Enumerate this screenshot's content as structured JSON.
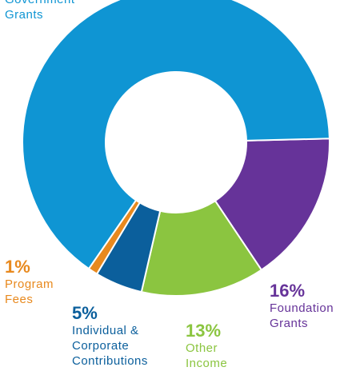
{
  "chart_data": {
    "type": "pie",
    "title": "",
    "donut": true,
    "legend": "none",
    "slices": [
      {
        "key": "gov",
        "label": [
          "Government",
          "Grants"
        ],
        "pct_label": "",
        "value": 65,
        "color": "#0f95d3"
      },
      {
        "key": "found",
        "label": [
          "Foundation",
          "Grants"
        ],
        "pct_label": "16%",
        "value": 16,
        "color": "#663399"
      },
      {
        "key": "other",
        "label": [
          "Other",
          "Income"
        ],
        "pct_label": "13%",
        "value": 13,
        "color": "#8bc540"
      },
      {
        "key": "indiv",
        "label": [
          "Individual &",
          "Corporate",
          "Contributions"
        ],
        "pct_label": "5%",
        "value": 5,
        "color": "#0b5f9c"
      },
      {
        "key": "prog",
        "label": [
          "Program",
          "Fees"
        ],
        "pct_label": "1%",
        "value": 1,
        "color": "#e8891e"
      }
    ]
  }
}
